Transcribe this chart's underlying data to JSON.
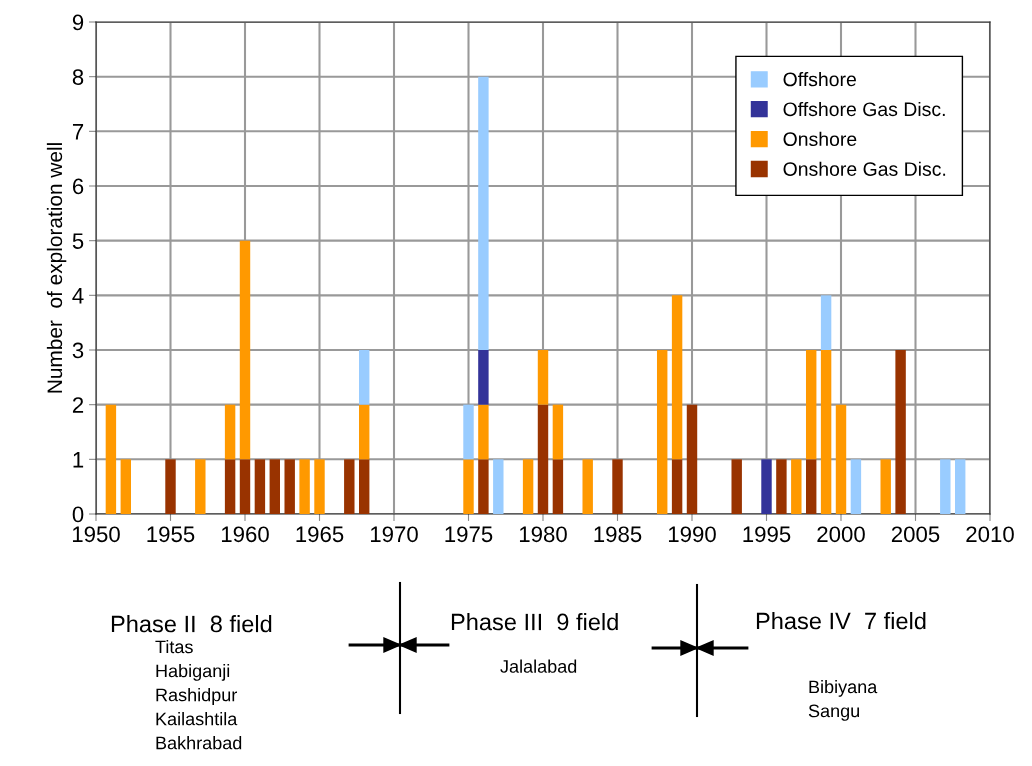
{
  "chart_data": {
    "type": "bar",
    "stacked": true,
    "ylabel": "Number  of exploration well",
    "x": [
      1951,
      1952,
      1955,
      1957,
      1959,
      1960,
      1961,
      1962,
      1963,
      1964,
      1965,
      1967,
      1968,
      1975,
      1976,
      1977,
      1979,
      1980,
      1981,
      1983,
      1985,
      1988,
      1989,
      1990,
      1993,
      1995,
      1996,
      1997,
      1998,
      1999,
      2000,
      2001,
      2003,
      2004,
      2007,
      2008
    ],
    "series": [
      {
        "name": "Onshore Gas Disc.",
        "color": "#993300",
        "values": [
          null,
          null,
          1,
          null,
          1,
          1,
          1,
          1,
          1,
          null,
          null,
          1,
          1,
          null,
          1,
          null,
          null,
          2,
          1,
          null,
          1,
          null,
          1,
          2,
          1,
          null,
          1,
          null,
          1,
          null,
          null,
          null,
          null,
          3,
          null,
          null
        ]
      },
      {
        "name": "Onshore",
        "color": "#ff9900",
        "values": [
          2,
          1,
          null,
          1,
          1,
          4,
          null,
          null,
          null,
          1,
          1,
          null,
          1,
          1,
          1,
          null,
          1,
          1,
          1,
          1,
          null,
          3,
          3,
          null,
          null,
          null,
          null,
          1,
          2,
          3,
          2,
          null,
          1,
          null,
          null,
          null
        ]
      },
      {
        "name": "Offshore Gas Disc.",
        "color": "#333399",
        "values": [
          null,
          null,
          null,
          null,
          null,
          null,
          null,
          null,
          null,
          null,
          null,
          null,
          null,
          null,
          1,
          null,
          null,
          null,
          null,
          null,
          null,
          null,
          null,
          null,
          null,
          1,
          null,
          null,
          null,
          null,
          null,
          null,
          null,
          null,
          null,
          null
        ]
      },
      {
        "name": "Offshore",
        "color": "#99ccff",
        "values": [
          null,
          null,
          null,
          null,
          null,
          null,
          null,
          null,
          null,
          null,
          null,
          null,
          1,
          1,
          5,
          1,
          null,
          null,
          null,
          null,
          null,
          null,
          null,
          null,
          null,
          null,
          null,
          null,
          null,
          1,
          null,
          1,
          null,
          null,
          1,
          1
        ]
      }
    ],
    "xlim": [
      1950,
      2010
    ],
    "xticks": [
      1950,
      1955,
      1960,
      1965,
      1970,
      1975,
      1980,
      1985,
      1990,
      1995,
      2000,
      2005,
      2010
    ],
    "ylim": [
      0,
      9
    ],
    "yticks": [
      0,
      1,
      2,
      3,
      4,
      5,
      6,
      7,
      8,
      9
    ],
    "grid": true,
    "legend": "top right",
    "annotations": [
      "Phase II  8 field",
      "Titas\nHabiganji\nRashidpur\nKailashtila\nBakhrabad",
      "Phase III  9 field",
      "Jalalabad",
      "Phase IV  7 field",
      "Bibiyana\nSangu"
    ]
  }
}
